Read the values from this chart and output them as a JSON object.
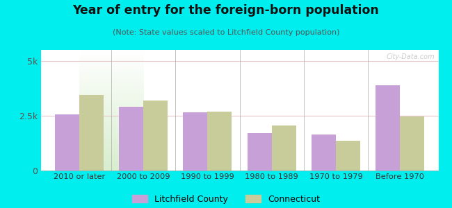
{
  "title": "Year of entry for the foreign-born population",
  "subtitle": "(Note: State values scaled to Litchfield County population)",
  "categories": [
    "2010 or later",
    "2000 to 2009",
    "1990 to 1999",
    "1980 to 1989",
    "1970 to 1979",
    "Before 1970"
  ],
  "litchfield": [
    2550,
    2900,
    2650,
    1700,
    1650,
    3900
  ],
  "connecticut": [
    3450,
    3200,
    2700,
    2050,
    1350,
    2450
  ],
  "litchfield_color": "#c8a0d8",
  "connecticut_color": "#c8cc9a",
  "background_outer": "#00eeee",
  "ylim": [
    0,
    5500
  ],
  "yticks": [
    0,
    2500,
    5000
  ],
  "ytick_labels": [
    "0",
    "2.5k",
    "5k"
  ],
  "bar_width": 0.38,
  "legend_litchfield": "Litchfield County",
  "legend_connecticut": "Connecticut"
}
